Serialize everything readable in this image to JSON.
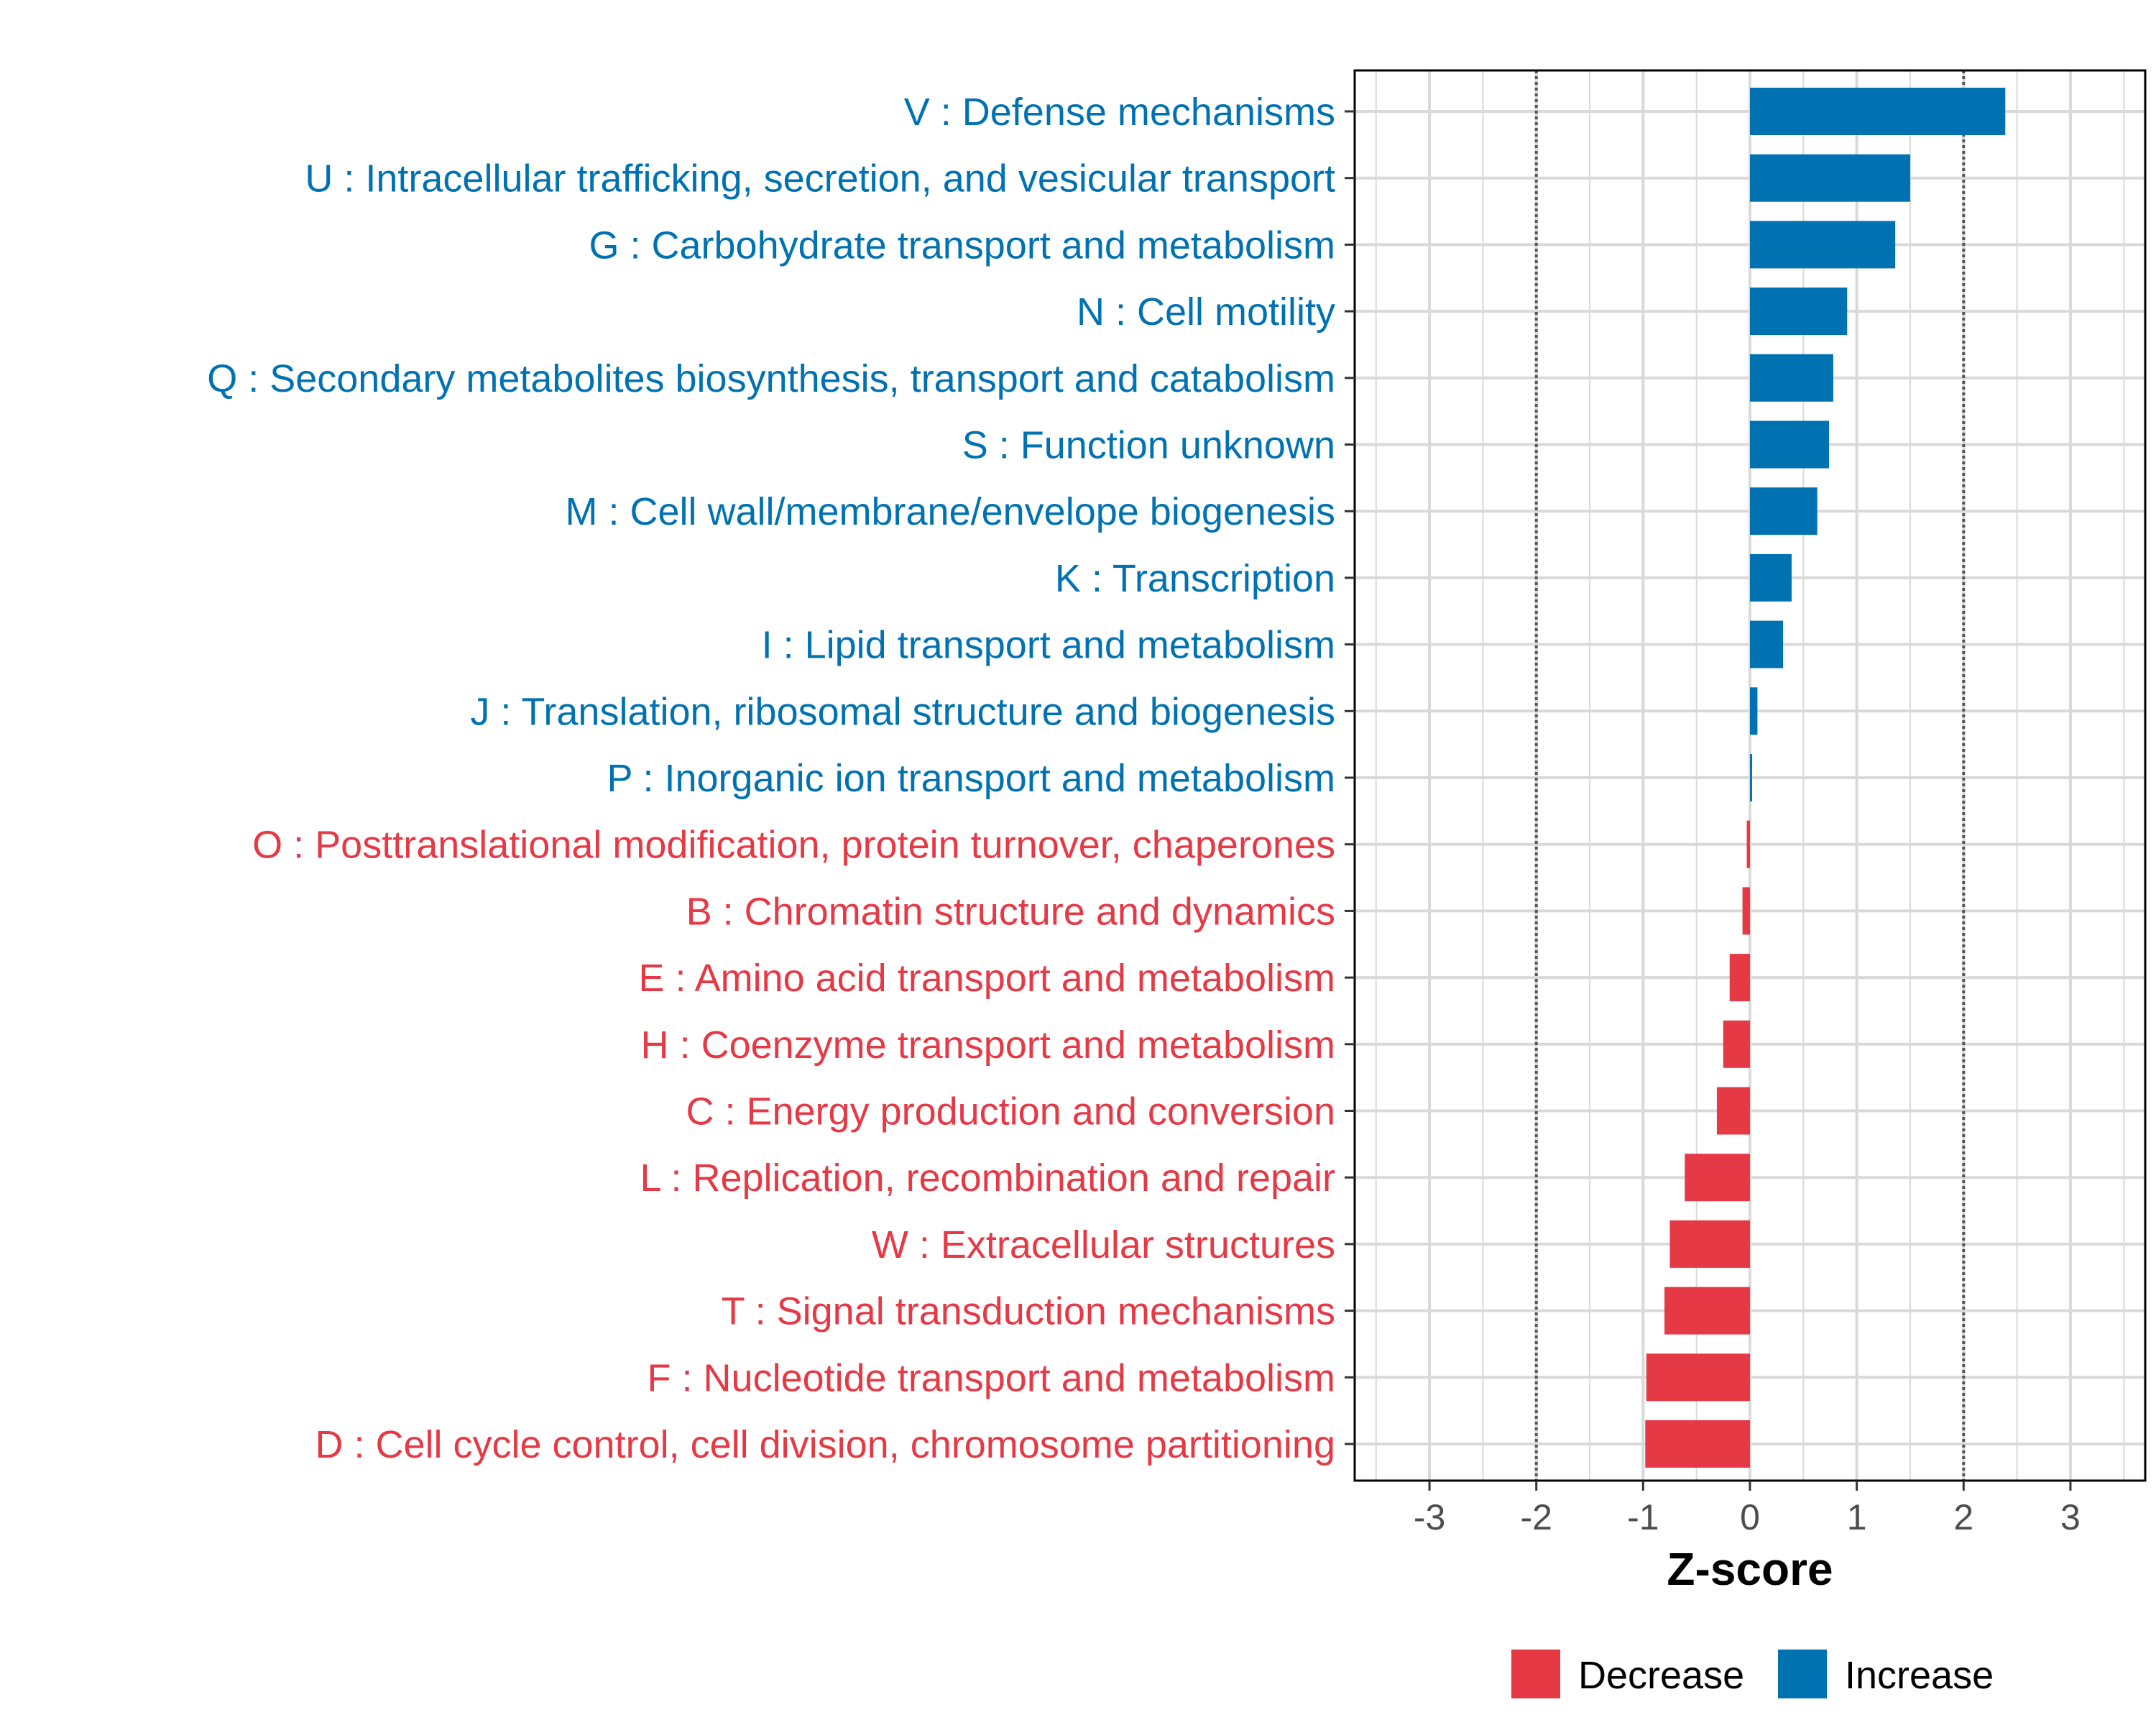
{
  "colors": {
    "increase": "#0072B2",
    "decrease": "#E63946",
    "grid": "#D9D9D9",
    "ref_line": "#555555"
  },
  "chart_data": {
    "type": "bar",
    "orientation": "horizontal",
    "title": "",
    "xlabel": "Z-score",
    "ylabel": "",
    "xlim": [
      -3.7,
      3.7
    ],
    "x_ticks": [
      -3,
      -2,
      -1,
      0,
      1,
      2,
      3
    ],
    "x_tick_labels": [
      "-3",
      "-2",
      "-1",
      "0",
      "1",
      "2",
      "3"
    ],
    "reference_lines": [
      -2,
      2
    ],
    "grid": true,
    "legend": {
      "placement": "bottom",
      "entries": [
        "Decrease",
        "Increase"
      ]
    },
    "categories": [
      "V : Defense mechanisms",
      "U : Intracellular trafficking, secretion, and vesicular transport",
      "G : Carbohydrate transport and metabolism",
      "N : Cell motility",
      "Q : Secondary metabolites biosynthesis, transport and catabolism",
      "S : Function unknown",
      "M : Cell wall/membrane/envelope biogenesis",
      "K : Transcription",
      "I : Lipid transport and metabolism",
      "J : Translation, ribosomal structure and biogenesis",
      "P : Inorganic ion transport and metabolism",
      "O : Posttranslational modification, protein turnover, chaperones",
      "B : Chromatin structure and dynamics",
      "E : Amino acid transport and metabolism",
      "H : Coenzyme transport and metabolism",
      "C : Energy production and conversion",
      "L : Replication, recombination and repair",
      "W : Extracellular structures",
      "T : Signal transduction mechanisms",
      "F : Nucleotide transport and metabolism",
      "D : Cell cycle control, cell division, chromosome partitioning"
    ],
    "values": [
      2.39,
      1.5,
      1.36,
      0.91,
      0.78,
      0.74,
      0.63,
      0.39,
      0.31,
      0.07,
      0.02,
      -0.03,
      -0.07,
      -0.19,
      -0.25,
      -0.31,
      -0.61,
      -0.75,
      -0.8,
      -0.97,
      -0.98
    ],
    "groups": [
      "Increase",
      "Increase",
      "Increase",
      "Increase",
      "Increase",
      "Increase",
      "Increase",
      "Increase",
      "Increase",
      "Increase",
      "Increase",
      "Decrease",
      "Decrease",
      "Decrease",
      "Decrease",
      "Decrease",
      "Decrease",
      "Decrease",
      "Decrease",
      "Decrease",
      "Decrease"
    ]
  }
}
